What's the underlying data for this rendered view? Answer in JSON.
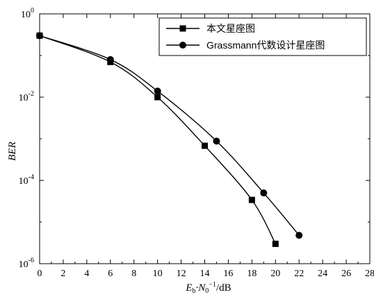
{
  "chart_data": {
    "type": "line",
    "xlabel": {
      "main": "E",
      "sub1": "b",
      "mid": "·N",
      "sub2": "0",
      "sup": "−1",
      "tail": "/dB"
    },
    "ylabel": "BER",
    "xlim": [
      0,
      28
    ],
    "ylim": [
      1e-06,
      1
    ],
    "y_scale": "log",
    "x_ticks": [
      0,
      2,
      4,
      6,
      8,
      10,
      12,
      14,
      16,
      18,
      20,
      22,
      24,
      26,
      28
    ],
    "y_ticks": [
      {
        "value": 1,
        "base": "10",
        "exp": "0"
      },
      {
        "value": 0.01,
        "base": "10",
        "exp": "-2"
      },
      {
        "value": 0.0001,
        "base": "10",
        "exp": "-4"
      },
      {
        "value": 1e-06,
        "base": "10",
        "exp": "-6"
      }
    ],
    "legend_position": "top-right",
    "series": [
      {
        "name": "本文星座图",
        "marker": "square",
        "color": "#000000",
        "x": [
          0,
          6,
          10,
          14,
          18,
          20
        ],
        "y": [
          0.3,
          0.07,
          0.01,
          0.00068,
          3.4e-05,
          3e-06
        ]
      },
      {
        "name": "Grassmann代数设计星座图",
        "marker": "circle",
        "color": "#000000",
        "x": [
          0,
          6,
          10,
          15,
          19,
          22
        ],
        "y": [
          0.3,
          0.08,
          0.014,
          0.00088,
          5e-05,
          4.8e-06
        ]
      }
    ]
  }
}
